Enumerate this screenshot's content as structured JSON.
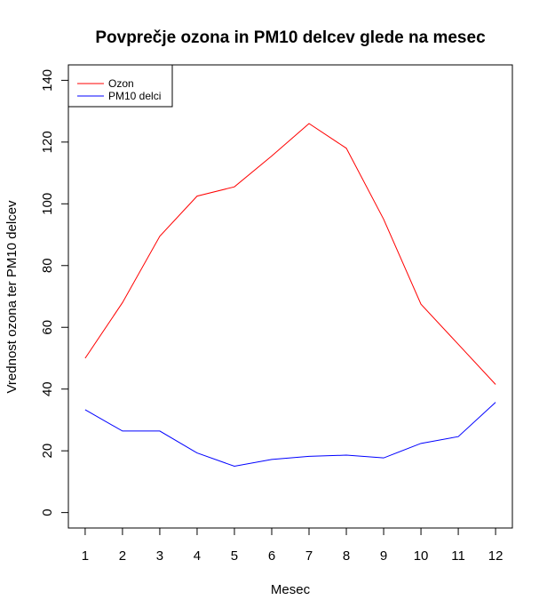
{
  "chart_data": {
    "type": "line",
    "title": "Povprečje ozona in PM10 delcev glede na mesec",
    "xlabel": "Mesec",
    "ylabel": "Vrednost ozona ter PM10 delcev",
    "x": [
      1,
      2,
      3,
      4,
      5,
      6,
      7,
      8,
      9,
      10,
      11,
      12
    ],
    "xticks": [
      "1",
      "2",
      "3",
      "4",
      "5",
      "6",
      "7",
      "8",
      "9",
      "10",
      "11",
      "12"
    ],
    "yticks": [
      "0",
      "20",
      "40",
      "60",
      "80",
      "100",
      "120",
      "140"
    ],
    "ylim": [
      -5,
      145
    ],
    "xlim": [
      0.55,
      12.45
    ],
    "legend_position": "top-left",
    "grid": false,
    "series": [
      {
        "name": "Ozon",
        "color": "#ff0000",
        "values": [
          50,
          68,
          89.5,
          102.5,
          105.5,
          115.5,
          126,
          118,
          95,
          67.5,
          54.5,
          41.5
        ]
      },
      {
        "name": "PM10 delci",
        "color": "#0000ff",
        "values": [
          33.3,
          26.4,
          26.4,
          19.3,
          15,
          17.2,
          18.2,
          18.6,
          17.7,
          22.4,
          24.6,
          35.7
        ]
      }
    ]
  }
}
